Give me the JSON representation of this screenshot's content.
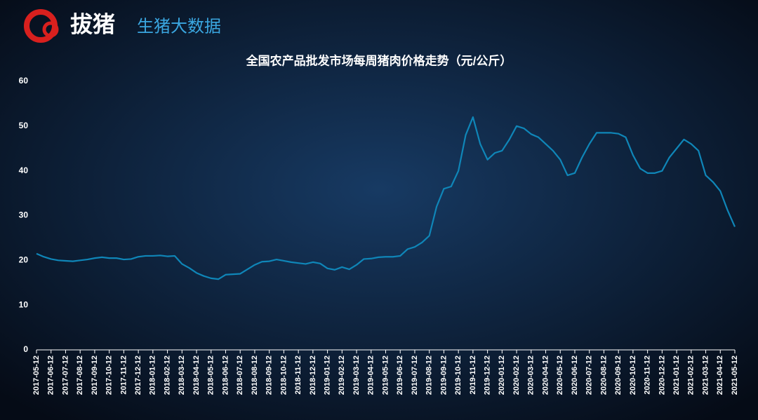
{
  "header": {
    "logo": "拔猪",
    "brand": "生猪大数据"
  },
  "chart_data": {
    "type": "line",
    "title": "全国农产品批发市场每周猪肉价格走势（元/公斤）",
    "categories": [
      "2017-05-12",
      null,
      "2017-06-12",
      null,
      "2017-07-12",
      null,
      "2017-08-12",
      null,
      "2017-09-12",
      null,
      "2017-10-12",
      null,
      "2017-11-12",
      null,
      "2017-12-12",
      null,
      "2018-01-12",
      null,
      "2018-02-12",
      null,
      "2018-03-12",
      null,
      "2018-04-12",
      null,
      "2018-05-12",
      null,
      "2018-06-12",
      null,
      "2018-07-12",
      null,
      "2018-08-12",
      null,
      "2018-09-12",
      null,
      "2018-10-12",
      null,
      "2018-11-12",
      null,
      "2018-12-12",
      null,
      "2019-01-12",
      null,
      "2019-02-12",
      null,
      "2019-03-12",
      null,
      "2019-04-12",
      null,
      "2019-05-12",
      null,
      "2019-06-12",
      null,
      "2019-07-12",
      null,
      "2019-08-12",
      null,
      "2019-09-12",
      null,
      "2019-10-12",
      null,
      "2019-11-12",
      null,
      "2019-12-12",
      null,
      "2020-01-12",
      null,
      "2020-02-12",
      null,
      "2020-03-12",
      null,
      "2020-04-12",
      null,
      "2020-05-12",
      null,
      "2020-06-12",
      null,
      "2020-07-12",
      null,
      "2020-08-12",
      null,
      "2020-09-12",
      null,
      "2020-10-12",
      null,
      "2020-11-12",
      null,
      "2020-12-12",
      null,
      "2021-01-12",
      null,
      "2021-02-12",
      null,
      "2021-03-12",
      null,
      "2021-04-12",
      null,
      "2021-05-12"
    ],
    "values": [
      21.5,
      20.8,
      20.3,
      20.0,
      19.9,
      19.8,
      20.0,
      20.2,
      20.5,
      20.7,
      20.5,
      20.5,
      20.2,
      20.3,
      20.8,
      21.0,
      21.0,
      21.1,
      20.9,
      21.0,
      19.2,
      18.3,
      17.2,
      16.5,
      16.0,
      15.8,
      16.8,
      16.9,
      17.0,
      18.0,
      19.0,
      19.7,
      19.8,
      20.2,
      19.9,
      19.6,
      19.4,
      19.2,
      19.6,
      19.3,
      18.2,
      17.9,
      18.5,
      18.0,
      19.0,
      20.3,
      20.4,
      20.7,
      20.8,
      20.8,
      21.0,
      22.5,
      23.0,
      24.0,
      25.5,
      32.0,
      36.0,
      36.5,
      40.0,
      48.0,
      52.0,
      46.0,
      42.5,
      44.0,
      44.5,
      47.0,
      50.0,
      49.5,
      48.2,
      47.5,
      46.0,
      44.5,
      42.5,
      39.0,
      39.5,
      43.0,
      46.0,
      48.5,
      48.5,
      48.5,
      48.3,
      47.5,
      43.5,
      40.5,
      39.5,
      39.5,
      40.0,
      43.0,
      45.0,
      47.0,
      46.0,
      44.5,
      39.0,
      37.5,
      35.5,
      31.2,
      27.5
    ],
    "color": "#0f86b8",
    "ylim": [
      0,
      60
    ],
    "yticks": [
      0,
      10,
      20,
      30,
      40,
      50,
      60
    ]
  }
}
